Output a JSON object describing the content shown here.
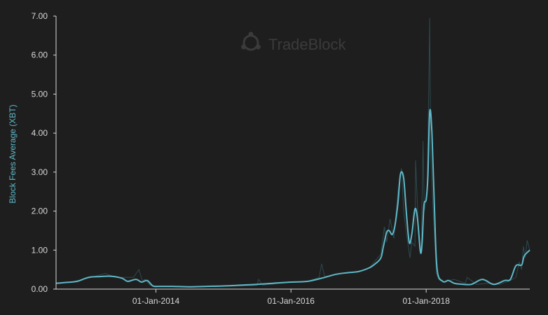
{
  "watermark": {
    "text": "TradeBlock"
  },
  "colors": {
    "background": "#1e1e1e",
    "line": "#5fb8c8",
    "raw_line": "#2d4a4f",
    "axis": "#d8d8d8",
    "ylabel": "#5fb8c8"
  },
  "chart_data": {
    "type": "line",
    "title": "",
    "xlabel": "",
    "ylabel": "Block Fees Average (XBT)",
    "ylim": [
      0,
      7
    ],
    "xlim": [
      "2012-07-10",
      "2019-07-15"
    ],
    "y_ticks": [
      "0.00",
      "1.00",
      "2.00",
      "3.00",
      "4.00",
      "5.00",
      "6.00",
      "7.00"
    ],
    "x_ticks": [
      {
        "date": "2014-01-01",
        "label": "01-Jan-2014"
      },
      {
        "date": "2016-01-01",
        "label": "01-Jan-2016"
      },
      {
        "date": "2018-01-01",
        "label": "01-Jan-2018"
      }
    ],
    "grid": false,
    "legend": "none",
    "series": [
      {
        "x": [
          "2012-07-10",
          "2012-09-01",
          "2012-11-01",
          "2013-01-01",
          "2013-03-01",
          "2013-05-01",
          "2013-07-01",
          "2013-08-01",
          "2013-09-15",
          "2013-10-15",
          "2013-11-15",
          "2013-12-15",
          "2014-01-15",
          "2014-04-01",
          "2014-07-01",
          "2014-10-01",
          "2015-01-01",
          "2015-04-01",
          "2015-07-01",
          "2015-10-01",
          "2016-01-01",
          "2016-04-01",
          "2016-07-01",
          "2016-09-01",
          "2016-11-01",
          "2017-01-01",
          "2017-03-01",
          "2017-04-01",
          "2017-05-01",
          "2017-05-15",
          "2017-06-01",
          "2017-06-15",
          "2017-07-01",
          "2017-07-15",
          "2017-08-01",
          "2017-08-15",
          "2017-09-01",
          "2017-09-15",
          "2017-10-01",
          "2017-10-15",
          "2017-11-01",
          "2017-11-15",
          "2017-12-01",
          "2017-12-10",
          "2017-12-20",
          "2018-01-01",
          "2018-01-10",
          "2018-01-20",
          "2018-02-01",
          "2018-02-15",
          "2018-03-01",
          "2018-04-01",
          "2018-05-01",
          "2018-06-01",
          "2018-07-01",
          "2018-09-01",
          "2018-11-01",
          "2019-01-01",
          "2019-03-01",
          "2019-04-01",
          "2019-05-01",
          "2019-06-01",
          "2019-06-15",
          "2019-07-15"
        ],
        "values": [
          0.15,
          0.17,
          0.2,
          0.3,
          0.32,
          0.33,
          0.28,
          0.2,
          0.25,
          0.18,
          0.22,
          0.08,
          0.07,
          0.07,
          0.06,
          0.07,
          0.08,
          0.1,
          0.12,
          0.15,
          0.18,
          0.2,
          0.3,
          0.38,
          0.42,
          0.45,
          0.55,
          0.65,
          0.8,
          1.1,
          1.45,
          1.5,
          1.4,
          1.6,
          2.2,
          2.95,
          2.85,
          2.0,
          1.2,
          1.4,
          2.05,
          1.8,
          0.95,
          1.2,
          2.15,
          2.3,
          2.9,
          4.55,
          4.0,
          2.0,
          0.5,
          0.2,
          0.22,
          0.15,
          0.13,
          0.12,
          0.25,
          0.12,
          0.22,
          0.25,
          0.6,
          0.62,
          0.85,
          1.0
        ]
      }
    ],
    "raw_series": {
      "x": [
        "2012-07-10",
        "2012-10-01",
        "2013-01-01",
        "2013-04-01",
        "2013-06-01",
        "2013-09-01",
        "2013-10-01",
        "2013-10-20",
        "2013-11-01",
        "2013-12-01",
        "2014-01-15",
        "2014-06-01",
        "2015-01-01",
        "2015-06-01",
        "2015-07-01",
        "2015-07-10",
        "2015-08-01",
        "2016-01-01",
        "2016-04-01",
        "2016-06-01",
        "2016-06-15",
        "2016-07-01",
        "2016-10-01",
        "2017-01-01",
        "2017-03-01",
        "2017-05-01",
        "2017-05-20",
        "2017-06-01",
        "2017-06-20",
        "2017-07-10",
        "2017-08-01",
        "2017-08-20",
        "2017-09-01",
        "2017-09-20",
        "2017-10-05",
        "2017-10-15",
        "2017-11-01",
        "2017-11-05",
        "2017-11-20",
        "2017-12-01",
        "2017-12-05",
        "2017-12-15",
        "2017-12-22",
        "2018-01-05",
        "2018-01-15",
        "2018-01-20",
        "2018-01-25",
        "2018-02-10",
        "2018-02-25",
        "2018-03-10",
        "2018-04-01",
        "2018-06-01",
        "2018-08-01",
        "2018-08-10",
        "2018-10-01",
        "2018-12-01",
        "2019-02-01",
        "2019-04-01",
        "2019-05-01",
        "2019-05-20",
        "2019-06-01",
        "2019-06-10",
        "2019-06-20",
        "2019-07-01",
        "2019-07-15"
      ],
      "values": [
        0.14,
        0.18,
        0.28,
        0.4,
        0.3,
        0.3,
        0.5,
        0.2,
        0.25,
        0.1,
        0.07,
        0.06,
        0.07,
        0.09,
        0.1,
        0.25,
        0.1,
        0.18,
        0.2,
        0.3,
        0.65,
        0.32,
        0.4,
        0.45,
        0.55,
        0.9,
        1.6,
        1.2,
        1.8,
        1.3,
        2.5,
        3.1,
        2.0,
        1.3,
        0.8,
        1.2,
        1.1,
        3.3,
        1.5,
        0.9,
        1.1,
        3.8,
        2.0,
        2.4,
        5.2,
        6.95,
        3.5,
        1.8,
        0.4,
        0.25,
        0.18,
        0.25,
        0.15,
        0.3,
        0.12,
        0.15,
        0.12,
        0.22,
        0.3,
        0.7,
        0.5,
        1.1,
        0.8,
        1.25,
        1.0
      ]
    }
  }
}
